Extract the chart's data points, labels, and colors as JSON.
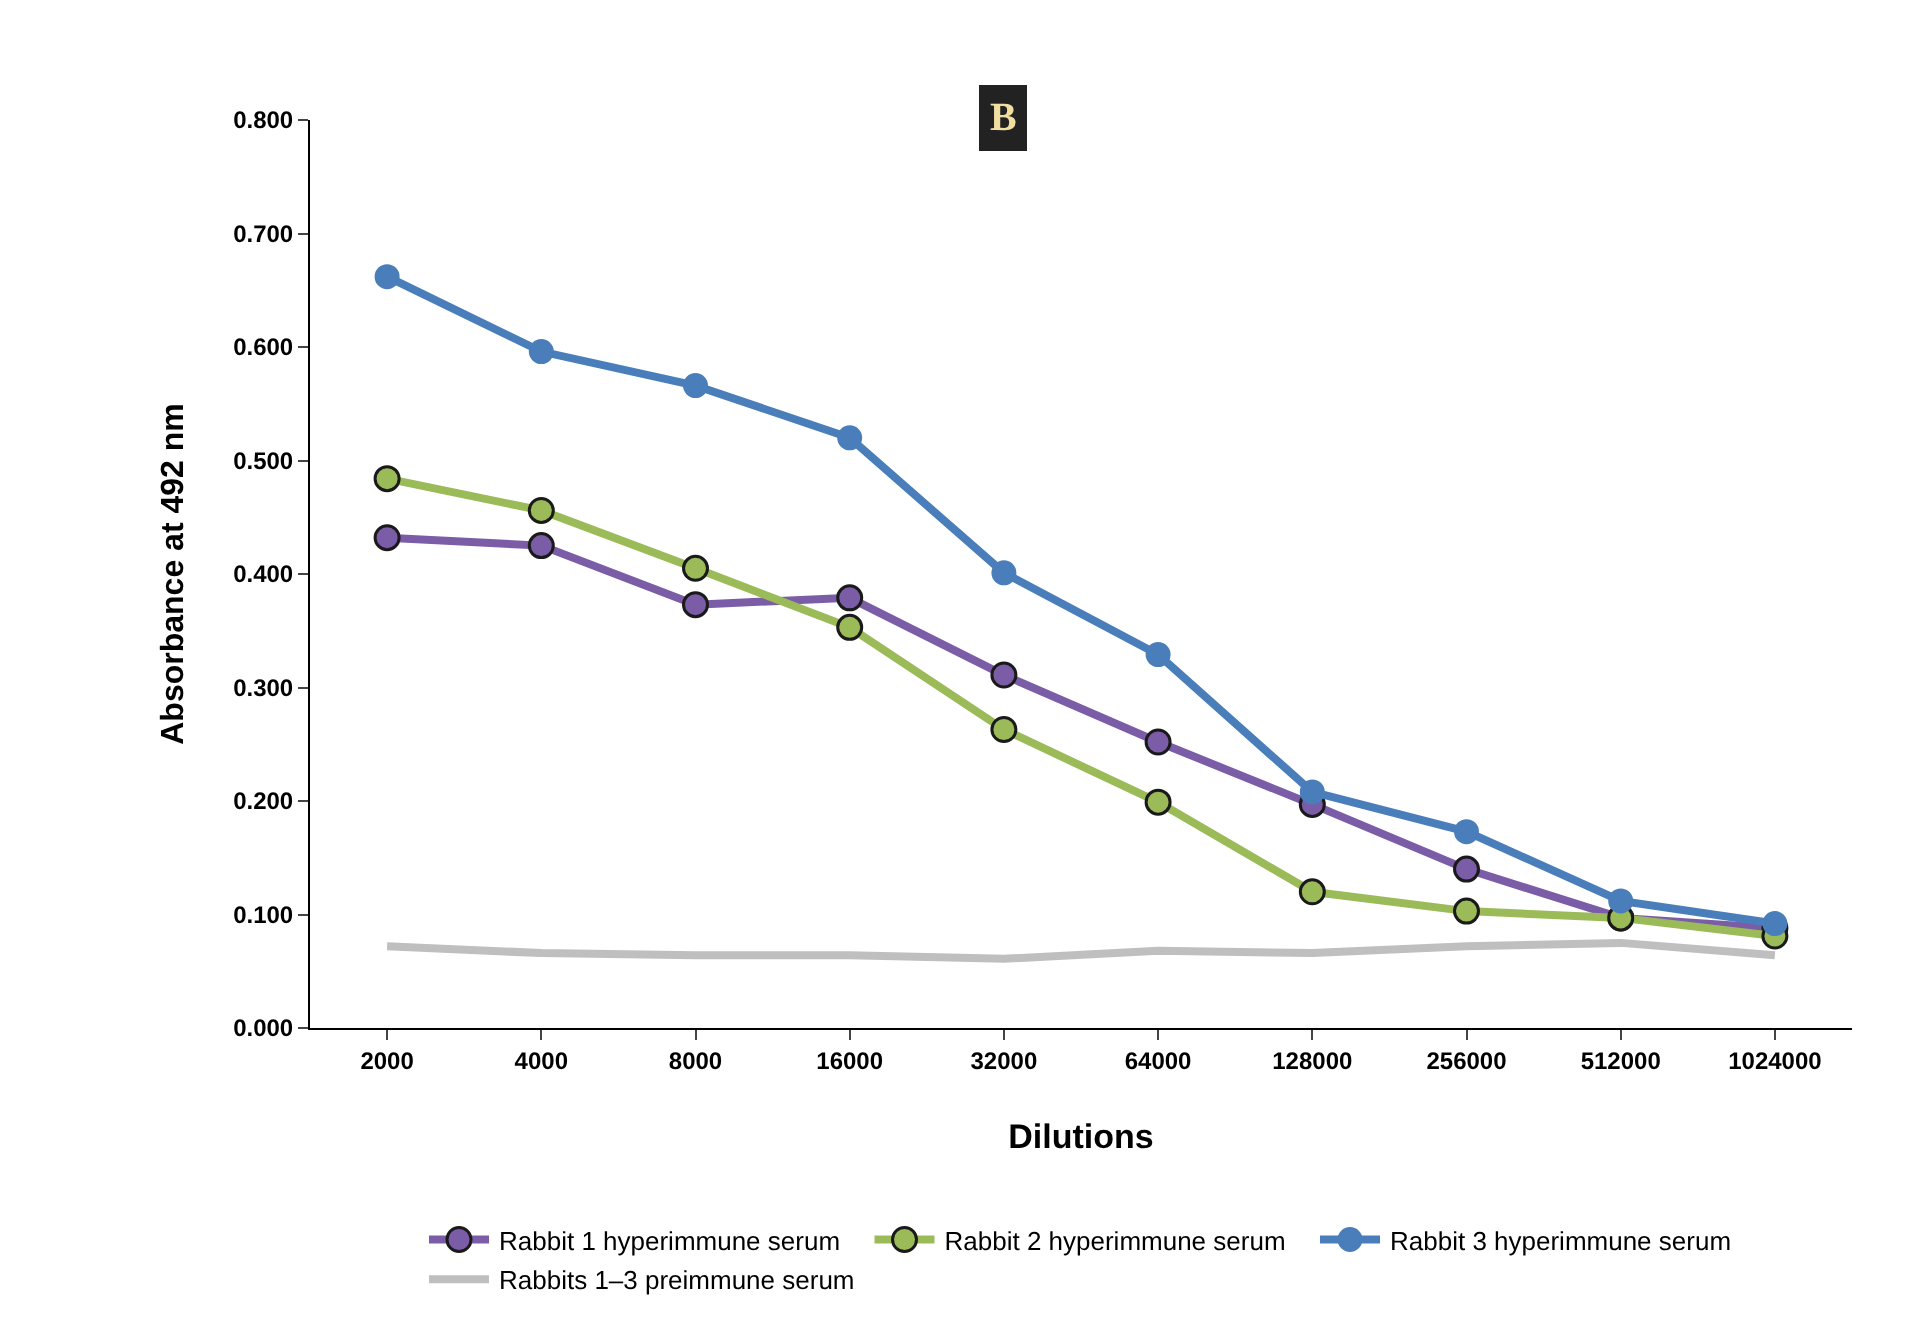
{
  "chart_data": {
    "type": "line",
    "title": "B",
    "xlabel": "Dilutions",
    "ylabel": "Absorbance at 492 nm",
    "categories": [
      "2000",
      "4000",
      "8000",
      "16000",
      "32000",
      "64000",
      "128000",
      "256000",
      "512000",
      "1024000"
    ],
    "series": [
      {
        "name": "Rabbit 1 hyperimmune serum",
        "color": "#7b5ca6",
        "marker": "circle",
        "values": [
          0.432,
          0.425,
          0.373,
          0.379,
          0.311,
          0.252,
          0.197,
          0.14,
          0.097,
          0.088
        ]
      },
      {
        "name": "Rabbit 2 hyperimmune serum",
        "color": "#9bbb59",
        "marker": "circle",
        "values": [
          0.484,
          0.456,
          0.405,
          0.353,
          0.263,
          0.199,
          0.12,
          0.103,
          0.097,
          0.081
        ]
      },
      {
        "name": "Rabbit 3 hyperimmune serum",
        "color": "#4a7ebb",
        "marker": "circle",
        "values": [
          0.662,
          0.596,
          0.566,
          0.52,
          0.401,
          0.329,
          0.208,
          0.173,
          0.112,
          0.092
        ]
      },
      {
        "name": "Rabbits 1–3 preimmune serum",
        "color": "#bfbfbf",
        "marker": "none",
        "values": [
          0.072,
          0.066,
          0.064,
          0.064,
          0.061,
          0.068,
          0.066,
          0.072,
          0.075,
          0.064
        ]
      }
    ],
    "ylim": [
      0,
      0.8
    ],
    "yticks": [
      {
        "value": 0,
        "label": "0.000"
      },
      {
        "value": 0.1,
        "label": "0.100"
      },
      {
        "value": 0.2,
        "label": "0.200"
      },
      {
        "value": 0.3,
        "label": "0.300"
      },
      {
        "value": 0.4,
        "label": "0.400"
      },
      {
        "value": 0.5,
        "label": "0.500"
      },
      {
        "value": 0.6,
        "label": "0.600"
      },
      {
        "value": 0.7,
        "label": "0.700"
      },
      {
        "value": 0.8,
        "label": "0.800"
      }
    ],
    "grid": false,
    "legend": "bottom",
    "line_style": "solid"
  }
}
